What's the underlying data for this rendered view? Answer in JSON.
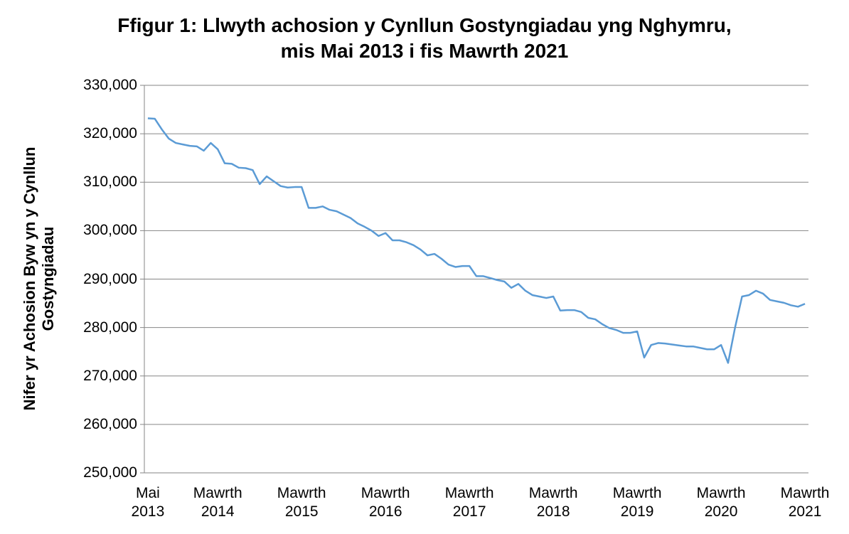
{
  "chart_data": {
    "type": "line",
    "title": "Ffigur 1: Llwyth achosion y Cynllun Gostyngiadau yng Nghymru, mis Mai 2013 i fis Mawrth 2021",
    "y_label": "Nifer yr Achosion Byw yn y Cynllun Gostyngiadau",
    "categories": [
      "Mai 2013",
      null,
      null,
      null,
      null,
      null,
      null,
      null,
      null,
      null,
      "Mawrth 2014",
      null,
      null,
      null,
      null,
      null,
      null,
      null,
      null,
      null,
      null,
      null,
      "Mawrth 2015",
      null,
      null,
      null,
      null,
      null,
      null,
      null,
      null,
      null,
      null,
      null,
      "Mawrth 2016",
      null,
      null,
      null,
      null,
      null,
      null,
      null,
      null,
      null,
      null,
      null,
      "Mawrth 2017",
      null,
      null,
      null,
      null,
      null,
      null,
      null,
      null,
      null,
      null,
      null,
      "Mawrth 2018",
      null,
      null,
      null,
      null,
      null,
      null,
      null,
      null,
      null,
      null,
      null,
      "Mawrth 2019",
      null,
      null,
      null,
      null,
      null,
      null,
      null,
      null,
      null,
      null,
      null,
      "Mawrth 2020",
      null,
      null,
      null,
      null,
      null,
      null,
      null,
      null,
      null,
      null,
      null,
      "Mawrth 2021"
    ],
    "values": [
      323200,
      323100,
      320900,
      319000,
      318100,
      317800,
      317500,
      317400,
      316500,
      318100,
      316800,
      313900,
      313800,
      313000,
      312900,
      312500,
      309600,
      311200,
      310200,
      309200,
      308900,
      309000,
      309000,
      304700,
      304700,
      305000,
      304300,
      304000,
      303300,
      302600,
      301500,
      300800,
      300000,
      298900,
      299500,
      298000,
      298000,
      297600,
      297000,
      296100,
      294900,
      295200,
      294200,
      293000,
      292500,
      292700,
      292700,
      290600,
      290600,
      290200,
      289800,
      289500,
      288200,
      289000,
      287600,
      286700,
      286400,
      286100,
      286400,
      283500,
      283600,
      283600,
      283200,
      282000,
      281700,
      280700,
      279900,
      279500,
      278900,
      278900,
      279200,
      273800,
      276400,
      276800,
      276700,
      276500,
      276300,
      276100,
      276100,
      275800,
      275500,
      275500,
      276400,
      272700,
      280000,
      286400,
      286700,
      287600,
      287000,
      285700,
      285400,
      285100,
      284600,
      284300,
      284900
    ],
    "color": "#5b9bd5",
    "ylim": [
      250000,
      330000
    ],
    "yticks": [
      {
        "value": 250000,
        "label": "250,000"
      },
      {
        "value": 260000,
        "label": "260,000"
      },
      {
        "value": 270000,
        "label": "270,000"
      },
      {
        "value": 280000,
        "label": "280,000"
      },
      {
        "value": 290000,
        "label": "290,000"
      },
      {
        "value": 300000,
        "label": "300,000"
      },
      {
        "value": 310000,
        "label": "310,000"
      },
      {
        "value": 320000,
        "label": "320,000"
      },
      {
        "value": 330000,
        "label": "330,000"
      }
    ],
    "grid": true
  }
}
